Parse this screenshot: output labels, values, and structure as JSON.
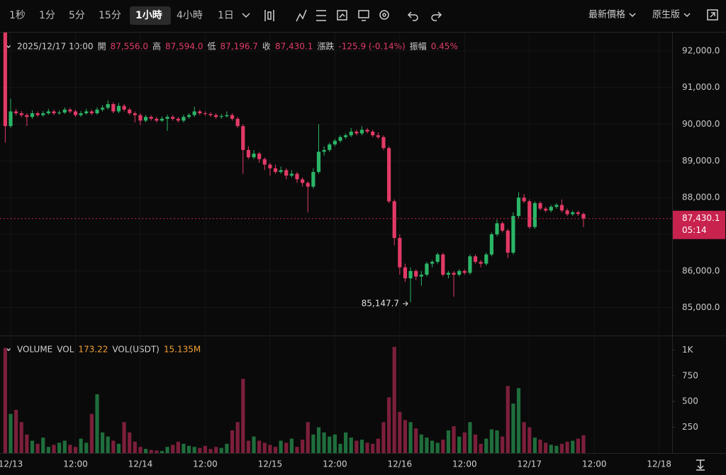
{
  "toolbar": {
    "intervals": [
      "1秒",
      "1分",
      "5分",
      "15分",
      "1小時",
      "4小時",
      "1日"
    ],
    "active_interval": "1小時",
    "right": [
      "最新價格",
      "原生版"
    ]
  },
  "info": {
    "time": "2025/12/17 10:00",
    "fields": [
      {
        "label": "開",
        "value": "87,556.0"
      },
      {
        "label": "高",
        "value": "87,594.0"
      },
      {
        "label": "低",
        "value": "87,196.7"
      },
      {
        "label": "收",
        "value": "87,430.1"
      },
      {
        "label": "漲跌",
        "value": "-125.9 (-0.14%)"
      },
      {
        "label": "振幅",
        "value": "0.45%"
      }
    ]
  },
  "volume_info": {
    "title": "VOLUME",
    "fields": [
      {
        "label": "VOL",
        "value": "173.22"
      },
      {
        "label": "VOL(USDT)",
        "value": "15.135M"
      }
    ]
  },
  "chart_data": {
    "type": "candlestick",
    "up_color": "#2bb567",
    "down_color": "#e23a66",
    "grid": true,
    "xlim": [
      -0.97,
      123.4
    ],
    "xticks": [
      {
        "value": 1,
        "label": "12/13"
      },
      {
        "value": 13,
        "label": "12:00"
      },
      {
        "value": 25,
        "label": "12/14"
      },
      {
        "value": 37,
        "label": "12:00"
      },
      {
        "value": 49,
        "label": "12/15"
      },
      {
        "value": 61,
        "label": "12:00"
      },
      {
        "value": 73,
        "label": "12/16"
      },
      {
        "value": 85,
        "label": "12:00"
      },
      {
        "value": 97,
        "label": "12/17"
      },
      {
        "value": 109,
        "label": "12:00"
      },
      {
        "value": 121,
        "label": "12/18"
      }
    ],
    "ylim": [
      84260,
      92500
    ],
    "yticks": [
      {
        "value": 85000,
        "label": "85,000.0"
      },
      {
        "value": 86000,
        "label": "86,000.0"
      },
      {
        "value": 87000,
        "label": "87,000.0"
      },
      {
        "value": 88000,
        "label": "88,000.0"
      },
      {
        "value": 89000,
        "label": "89,000.0"
      },
      {
        "value": 90000,
        "label": "90,000.0"
      },
      {
        "value": 91000,
        "label": "91,000.0"
      },
      {
        "value": 92000,
        "label": "92,000.0"
      }
    ],
    "ohlc": [
      [
        92600,
        92700,
        89500,
        89950
      ],
      [
        89950,
        90700,
        89900,
        90350
      ],
      [
        90350,
        90420,
        90240,
        90300
      ],
      [
        90300,
        90360,
        90190,
        90250
      ],
      [
        90250,
        90300,
        89950,
        90200
      ],
      [
        90200,
        90380,
        90150,
        90300
      ],
      [
        90300,
        90350,
        90200,
        90250
      ],
      [
        90250,
        90360,
        90200,
        90300
      ],
      [
        90300,
        90420,
        90260,
        90350
      ],
      [
        90350,
        90400,
        90250,
        90300
      ],
      [
        90300,
        90380,
        90260,
        90320
      ],
      [
        90320,
        90460,
        90280,
        90400
      ],
      [
        90400,
        90450,
        90300,
        90350
      ],
      [
        90350,
        90400,
        90200,
        90250
      ],
      [
        90250,
        90360,
        90200,
        90300
      ],
      [
        90300,
        90420,
        90260,
        90350
      ],
      [
        90350,
        90400,
        90250,
        90300
      ],
      [
        90300,
        90460,
        90260,
        90400
      ],
      [
        90400,
        90520,
        90350,
        90450
      ],
      [
        90450,
        90650,
        90400,
        90550
      ],
      [
        90550,
        90600,
        90300,
        90350
      ],
      [
        90350,
        90580,
        90300,
        90500
      ],
      [
        90500,
        90550,
        90350,
        90400
      ],
      [
        90400,
        90450,
        90250,
        90300
      ],
      [
        90300,
        90350,
        90050,
        90250
      ],
      [
        90250,
        90300,
        89980,
        90100
      ],
      [
        90100,
        90260,
        90050,
        90200
      ],
      [
        90200,
        90250,
        90100,
        90150
      ],
      [
        90150,
        90200,
        90050,
        90100
      ],
      [
        90100,
        90210,
        90060,
        90150
      ],
      [
        90150,
        90260,
        89820,
        90200
      ],
      [
        90200,
        90250,
        90100,
        90150
      ],
      [
        90150,
        90200,
        90050,
        90100
      ],
      [
        90100,
        90260,
        90050,
        90200
      ],
      [
        90200,
        90300,
        90150,
        90250
      ],
      [
        90250,
        90480,
        90200,
        90350
      ],
      [
        90350,
        90400,
        90250,
        90300
      ],
      [
        90300,
        90350,
        90230,
        90280
      ],
      [
        90280,
        90330,
        90200,
        90250
      ],
      [
        90250,
        90300,
        90150,
        90200
      ],
      [
        90200,
        90280,
        90150,
        90220
      ],
      [
        90220,
        90350,
        90180,
        90250
      ],
      [
        90250,
        90300,
        90100,
        90150
      ],
      [
        90150,
        90200,
        89900,
        89950
      ],
      [
        89950,
        90000,
        88650,
        89300
      ],
      [
        89300,
        89400,
        89050,
        89100
      ],
      [
        89100,
        89300,
        89050,
        89200
      ],
      [
        89200,
        89250,
        88950,
        89050
      ],
      [
        89050,
        89100,
        88750,
        88900
      ],
      [
        88900,
        88950,
        88600,
        88800
      ],
      [
        88800,
        88900,
        88650,
        88700
      ],
      [
        88700,
        88850,
        88650,
        88750
      ],
      [
        88750,
        88800,
        88500,
        88600
      ],
      [
        88600,
        88750,
        88550,
        88650
      ],
      [
        88650,
        88700,
        88400,
        88500
      ],
      [
        88500,
        88550,
        88300,
        88400
      ],
      [
        88400,
        88450,
        87600,
        88300
      ],
      [
        88300,
        88800,
        88250,
        88700
      ],
      [
        88700,
        90000,
        88650,
        89250
      ],
      [
        89250,
        89400,
        89150,
        89300
      ],
      [
        89300,
        89500,
        89250,
        89450
      ],
      [
        89450,
        89600,
        89400,
        89550
      ],
      [
        89550,
        89700,
        89500,
        89650
      ],
      [
        89650,
        89750,
        89600,
        89700
      ],
      [
        89700,
        89900,
        89650,
        89800
      ],
      [
        89800,
        89850,
        89700,
        89750
      ],
      [
        89750,
        89950,
        89700,
        89850
      ],
      [
        89850,
        89900,
        89750,
        89800
      ],
      [
        89800,
        89850,
        89650,
        89700
      ],
      [
        89700,
        89780,
        89600,
        89650
      ],
      [
        89650,
        89700,
        89300,
        89350
      ],
      [
        89350,
        89400,
        87850,
        87900
      ],
      [
        87900,
        87950,
        86700,
        86900
      ],
      [
        86900,
        87000,
        85900,
        86100
      ],
      [
        86100,
        86200,
        85700,
        85800
      ],
      [
        85800,
        86100,
        85147.7,
        86000
      ],
      [
        86000,
        86050,
        85750,
        85850
      ],
      [
        85850,
        86000,
        85600,
        85900
      ],
      [
        85900,
        86250,
        85850,
        86200
      ],
      [
        86200,
        86300,
        86100,
        86250
      ],
      [
        86250,
        86500,
        86200,
        86450
      ],
      [
        86450,
        86500,
        85850,
        85900
      ],
      [
        85900,
        86000,
        85800,
        85950
      ],
      [
        85950,
        86000,
        85300,
        85900
      ],
      [
        85900,
        86050,
        85850,
        86000
      ],
      [
        86000,
        86050,
        85900,
        85950
      ],
      [
        85950,
        86450,
        85900,
        86400
      ],
      [
        86400,
        86450,
        86200,
        86250
      ],
      [
        86250,
        86300,
        86100,
        86200
      ],
      [
        86200,
        86500,
        86150,
        86450
      ],
      [
        86450,
        87050,
        86400,
        87000
      ],
      [
        87000,
        87400,
        86950,
        87300
      ],
      [
        87300,
        87350,
        87050,
        87100
      ],
      [
        87100,
        87150,
        86350,
        86500
      ],
      [
        86500,
        87600,
        86450,
        87500
      ],
      [
        87500,
        88150,
        87450,
        88000
      ],
      [
        88000,
        88100,
        87850,
        87900
      ],
      [
        87900,
        87950,
        87150,
        87200
      ],
      [
        87200,
        87900,
        87150,
        87850
      ],
      [
        87850,
        87900,
        87650,
        87700
      ],
      [
        87700,
        87750,
        87600,
        87650
      ],
      [
        87650,
        87800,
        87600,
        87750
      ],
      [
        87750,
        87850,
        87700,
        87800
      ],
      [
        87800,
        87950,
        87600,
        87650
      ],
      [
        87650,
        87700,
        87500,
        87550
      ],
      [
        87550,
        87650,
        87500,
        87600
      ],
      [
        87600,
        87650,
        87500,
        87556
      ],
      [
        87556,
        87594,
        87196.7,
        87430.1
      ]
    ],
    "price_marker": {
      "value": 87430.1,
      "label": "87,430.1",
      "countdown": "05:14",
      "color": "#c8224e"
    },
    "low_annotation": {
      "label": "85,147.7"
    },
    "volume": {
      "up_color": "#1f6e3c",
      "down_color": "#7c1f3b",
      "ylim": [
        0,
        1140
      ],
      "yticks": [
        250,
        500,
        750,
        {
          "value": 1000,
          "label": "1K"
        }
      ],
      "values": [
        1020,
        380,
        420,
        300,
        180,
        120,
        90,
        150,
        60,
        80,
        100,
        120,
        80,
        60,
        140,
        100,
        380,
        570,
        200,
        160,
        120,
        90,
        300,
        200,
        110,
        60,
        40,
        30,
        25,
        20,
        60,
        80,
        110,
        90,
        70,
        60,
        50,
        70,
        40,
        60,
        50,
        90,
        220,
        300,
        720,
        120,
        160,
        120,
        100,
        80,
        60,
        120,
        100,
        140,
        60,
        130,
        300,
        180,
        250,
        200,
        160,
        180,
        90,
        200,
        150,
        120,
        130,
        100,
        90,
        140,
        300,
        540,
        1030,
        400,
        320,
        300,
        240,
        180,
        150,
        120,
        100,
        130,
        220,
        260,
        160,
        200,
        300,
        180,
        90,
        140,
        230,
        220,
        160,
        650,
        480,
        630,
        300,
        250,
        150,
        130,
        100,
        80,
        70,
        90,
        110,
        120,
        140,
        173.22
      ]
    }
  }
}
